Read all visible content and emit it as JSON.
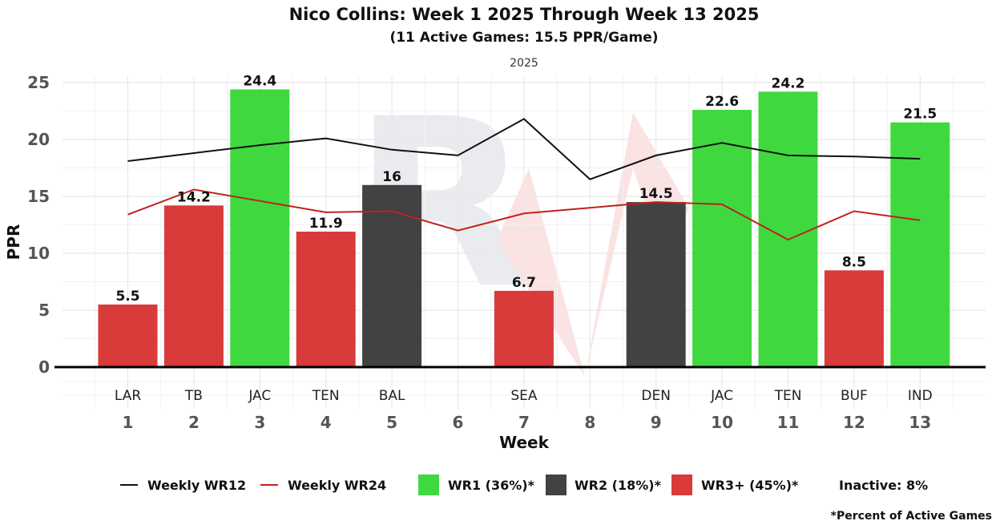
{
  "title": "Nico Collins: Week 1 2025 Through Week 13 2025",
  "subtitle": "(11 Active Games: 15.5 PPR/Game)",
  "facet_label": "2025",
  "footnote": "*Percent of Active Games",
  "colors": {
    "wr1": "#3fd93f",
    "wr2": "#424242",
    "wr3": "#d93a3a",
    "wr12_line": "#111111",
    "wr24_line": "#c0211f",
    "grid": "#e8e8e8",
    "axis": "#000000"
  },
  "legend": {
    "wr12": "Weekly WR12",
    "wr24": "Weekly WR24",
    "wr1": "WR1 (36%)*",
    "wr2": "WR2 (18%)*",
    "wr3": "WR3+ (45%)*",
    "inactive": "Inactive: 8%"
  },
  "chart_data": {
    "type": "bar",
    "xlabel": "Week",
    "ylabel": "PPR",
    "ylim": [
      0,
      25
    ],
    "yticks": [
      0,
      5,
      10,
      15,
      20,
      25
    ],
    "x": [
      1,
      2,
      3,
      4,
      5,
      6,
      7,
      8,
      9,
      10,
      11,
      12,
      13
    ],
    "opponents": [
      "LAR",
      "TB",
      "JAC",
      "TEN",
      "BAL",
      "",
      "SEA",
      "",
      "DEN",
      "JAC",
      "TEN",
      "BUF",
      "IND"
    ],
    "values": [
      5.5,
      14.2,
      24.4,
      11.9,
      16,
      null,
      6.7,
      null,
      14.5,
      22.6,
      24.2,
      8.5,
      21.5
    ],
    "data_labels": [
      "5.5",
      "14.2",
      "24.4",
      "11.9",
      "16",
      "",
      "6.7",
      "",
      "14.5",
      "22.6",
      "24.2",
      "8.5",
      "21.5"
    ],
    "tiers": [
      "wr3",
      "wr3",
      "wr1",
      "wr3",
      "wr2",
      null,
      "wr3",
      null,
      "wr2",
      "wr1",
      "wr1",
      "wr3",
      "wr1"
    ],
    "series": [
      {
        "name": "Weekly WR12",
        "values": [
          18.1,
          18.8,
          19.5,
          20.1,
          19.1,
          18.6,
          21.8,
          16.5,
          18.6,
          19.7,
          18.6,
          18.5,
          18.3
        ]
      },
      {
        "name": "Weekly WR24",
        "values": [
          13.4,
          15.6,
          14.6,
          13.6,
          13.7,
          12.0,
          13.5,
          14.0,
          14.5,
          14.3,
          11.2,
          13.7,
          12.9
        ]
      }
    ],
    "grid": true,
    "legend_position": "bottom"
  }
}
